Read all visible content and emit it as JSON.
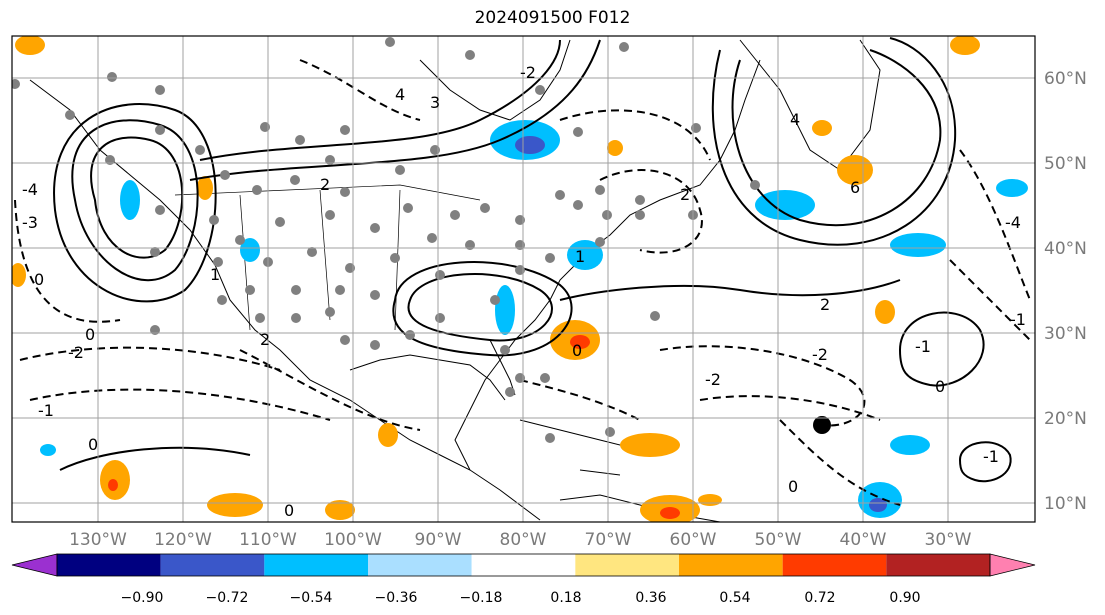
{
  "title": "2024091500 F012",
  "map": {
    "lon_labels": [
      "130°W",
      "120°W",
      "110°W",
      "100°W",
      "90°W",
      "80°W",
      "70°W",
      "60°W",
      "50°W",
      "40°W",
      "30°W"
    ],
    "lat_labels": [
      "60°N",
      "50°N",
      "40°N",
      "30°N",
      "20°N",
      "10°N"
    ],
    "contour_labels": [
      "0",
      "-4",
      "-3",
      "-2",
      "-1",
      "1",
      "2",
      "4",
      "6",
      "4",
      "-4",
      "3",
      "2",
      "-2",
      "-1",
      "0",
      "1",
      "-1",
      "0",
      "-2",
      "0",
      "2",
      "-1",
      "0",
      "0",
      "0",
      "-2",
      "2"
    ]
  },
  "colorbar": {
    "ticks": [
      "−0.90",
      "−0.72",
      "−0.54",
      "−0.36",
      "−0.18",
      "0.18",
      "0.36",
      "0.54",
      "0.72",
      "0.90"
    ],
    "colors": [
      "#9b30d0",
      "#000080",
      "#3a57c9",
      "#00bfff",
      "#aadfff",
      "#ffffff",
      "#ffe680",
      "#ffa500",
      "#ff3b00",
      "#b22222",
      "#ff80b0"
    ]
  }
}
